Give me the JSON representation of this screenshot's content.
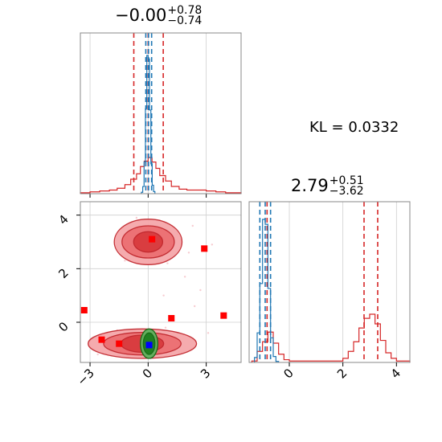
{
  "chart_data": [
    {
      "type": "histogram",
      "panel": "parameter 1 marginal",
      "title": {
        "median": "−0.00",
        "plus": "+0.78",
        "minus": "−0.74"
      },
      "xlim": [
        -3.5,
        4.8
      ],
      "ticks": [
        -3,
        0,
        3
      ],
      "tick_labels": [
        "−3",
        "0",
        "3"
      ],
      "grid": true,
      "series": [
        {
          "color": "#d62728",
          "quantiles": [
            -0.74,
            -0.0,
            0.78
          ],
          "x_edges": [
            -3.5,
            -3.0,
            -2.5,
            -2.0,
            -1.6,
            -1.2,
            -0.9,
            -0.6,
            -0.4,
            -0.2,
            0.0,
            0.2,
            0.4,
            0.6,
            0.9,
            1.2,
            1.6,
            2.0,
            2.5,
            3.0,
            3.5,
            4.0,
            4.8
          ],
          "counts": [
            1,
            2,
            3,
            4,
            6,
            10,
            16,
            22,
            30,
            36,
            40,
            35,
            28,
            20,
            14,
            8,
            5,
            4,
            4,
            3,
            2,
            1
          ]
        },
        {
          "color": "#1f77b4",
          "quantiles": [
            -0.12,
            0.02,
            0.18
          ],
          "x_edges": [
            -0.35,
            -0.28,
            -0.21,
            -0.14,
            -0.07,
            0.0,
            0.07,
            0.14,
            0.21,
            0.28,
            0.35
          ],
          "counts": [
            2,
            10,
            45,
            120,
            195,
            190,
            118,
            42,
            12,
            3
          ]
        }
      ]
    },
    {
      "type": "scatter-contour",
      "panel": "parameter 1 vs parameter 2",
      "xlim": [
        -3.5,
        4.8
      ],
      "ylim": [
        -1.5,
        4.5
      ],
      "xticks": [
        -3,
        0,
        3
      ],
      "xtick_labels": [
        "−3",
        "0",
        "3"
      ],
      "yticks": [
        0,
        2,
        4
      ],
      "ytick_labels": [
        "0",
        "2",
        "4"
      ],
      "grid": true,
      "red_square_points": [
        [
          -3.3,
          0.45
        ],
        [
          -2.4,
          -0.65
        ],
        [
          -1.5,
          -0.8
        ],
        [
          0.2,
          3.1
        ],
        [
          1.2,
          0.15
        ],
        [
          2.9,
          2.75
        ],
        [
          3.9,
          0.25
        ]
      ],
      "blue_square_points": [
        [
          0.05,
          -0.85
        ]
      ],
      "contours": [
        {
          "color": "#d62728",
          "center": [
            0.0,
            3.0
          ],
          "levels_radii": [
            [
              1.75,
              0.85
            ],
            [
              1.35,
              0.6
            ],
            [
              0.75,
              0.38
            ]
          ]
        },
        {
          "color": "#d62728",
          "center": [
            -0.3,
            -0.8
          ],
          "levels_radii": [
            [
              2.8,
              0.55
            ],
            [
              2.0,
              0.42
            ],
            [
              1.1,
              0.32
            ]
          ]
        },
        {
          "color": "#2ca02c",
          "center": [
            0.05,
            -0.8
          ],
          "levels_radii": [
            [
              0.45,
              0.55
            ],
            [
              0.3,
              0.4
            ]
          ]
        }
      ]
    },
    {
      "type": "histogram",
      "panel": "parameter 2 marginal",
      "title": {
        "median": "2.79",
        "plus": "+0.51",
        "minus": "−3.62"
      },
      "xlim": [
        -1.5,
        4.5
      ],
      "ticks": [
        0,
        2,
        4
      ],
      "tick_labels": [
        "0",
        "2",
        "4"
      ],
      "grid": true,
      "series": [
        {
          "color": "#d62728",
          "quantiles": [
            -0.83,
            2.79,
            3.3
          ],
          "x_edges": [
            -1.4,
            -1.2,
            -1.0,
            -0.8,
            -0.6,
            -0.4,
            -0.2,
            0.0,
            0.5,
            1.0,
            1.5,
            2.0,
            2.2,
            2.4,
            2.6,
            2.8,
            3.0,
            3.2,
            3.4,
            3.6,
            3.8,
            4.0,
            4.5
          ],
          "counts": [
            1,
            8,
            15,
            22,
            14,
            6,
            2,
            1,
            1,
            1,
            1,
            3,
            8,
            15,
            25,
            32,
            35,
            28,
            16,
            7,
            3,
            1
          ]
        },
        {
          "color": "#1f77b4",
          "quantiles": [
            -1.1,
            -0.9,
            -0.7
          ],
          "x_edges": [
            -1.3,
            -1.2,
            -1.1,
            -1.0,
            -0.9,
            -0.8,
            -0.7,
            -0.6,
            -0.5,
            -0.4
          ],
          "counts": [
            5,
            30,
            80,
            145,
            140,
            75,
            25,
            6,
            1
          ]
        }
      ]
    }
  ],
  "annotation": {
    "kl_text": "KL = 0.0332"
  }
}
